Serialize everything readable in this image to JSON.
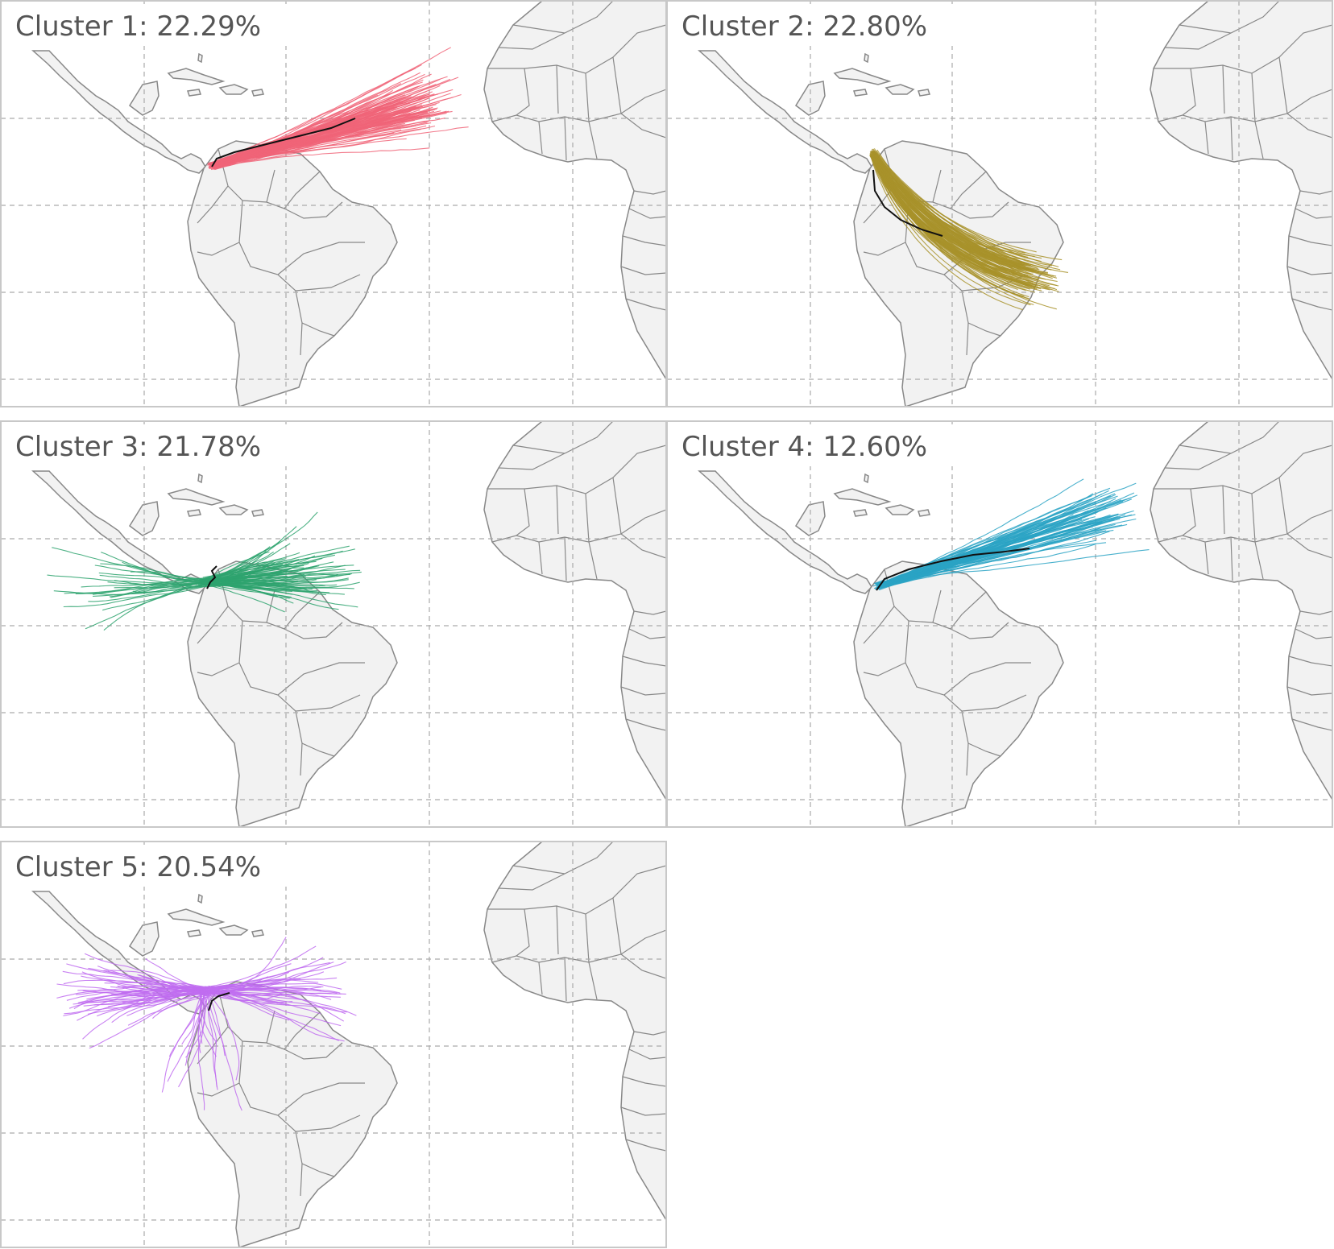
{
  "figure": {
    "panels": [
      {
        "id": 1,
        "title": "Cluster 1: 22.29%",
        "color": "#f06478",
        "pattern": "east-northeast"
      },
      {
        "id": 2,
        "title": "Cluster 2: 22.80%",
        "color": "#a8922a",
        "pattern": "southeast-inland"
      },
      {
        "id": 3,
        "title": "Cluster 3: 21.78%",
        "color": "#2ea36e",
        "pattern": "local-cluster"
      },
      {
        "id": 4,
        "title": "Cluster 4: 12.60%",
        "color": "#2aa3c4",
        "pattern": "east-northeast"
      },
      {
        "id": 5,
        "title": "Cluster 5: 20.54%",
        "color": "#c06cf0",
        "pattern": "local-westward"
      }
    ],
    "map_style": {
      "land_color": "#f2f2f2",
      "border_color": "#888888",
      "gridline_color": "#aaaaaa",
      "mean_track_color": "#111111",
      "gridlines": true
    }
  }
}
